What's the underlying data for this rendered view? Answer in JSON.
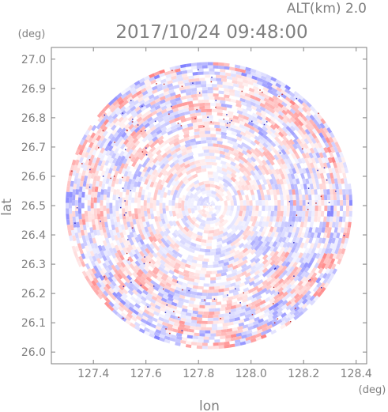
{
  "chart_data": {
    "type": "heatmap",
    "title": "2017/10/24 09:48:00",
    "subtitle": "ALT(km) 2.0",
    "xlabel": "lon",
    "ylabel": "lat",
    "x_unit": "(deg)",
    "y_unit": "(deg)",
    "xlim": [
      127.24,
      128.44
    ],
    "ylim": [
      25.96,
      27.04
    ],
    "x_ticks": [
      127.4,
      127.6,
      127.8,
      128.0,
      128.2,
      128.4
    ],
    "x_tick_labels": [
      "127.4",
      "127.6",
      "127.8",
      "128.0",
      "128.2",
      "128.4"
    ],
    "y_ticks": [
      26.0,
      26.1,
      26.2,
      26.3,
      26.4,
      26.5,
      26.6,
      26.7,
      26.8,
      26.9,
      27.0
    ],
    "y_tick_labels": [
      "26.0",
      "26.1",
      "26.2",
      "26.3",
      "26.4",
      "26.5",
      "26.6",
      "26.7",
      "26.8",
      "26.9",
      "27.0"
    ],
    "center": {
      "lon": 127.84,
      "lat": 26.5
    },
    "radius_deg_lat": 0.49,
    "colors": {
      "positive": "#ff8080",
      "negative": "#8080ff",
      "neutral": "#ffffff",
      "axis": "#7f7f7f"
    }
  }
}
